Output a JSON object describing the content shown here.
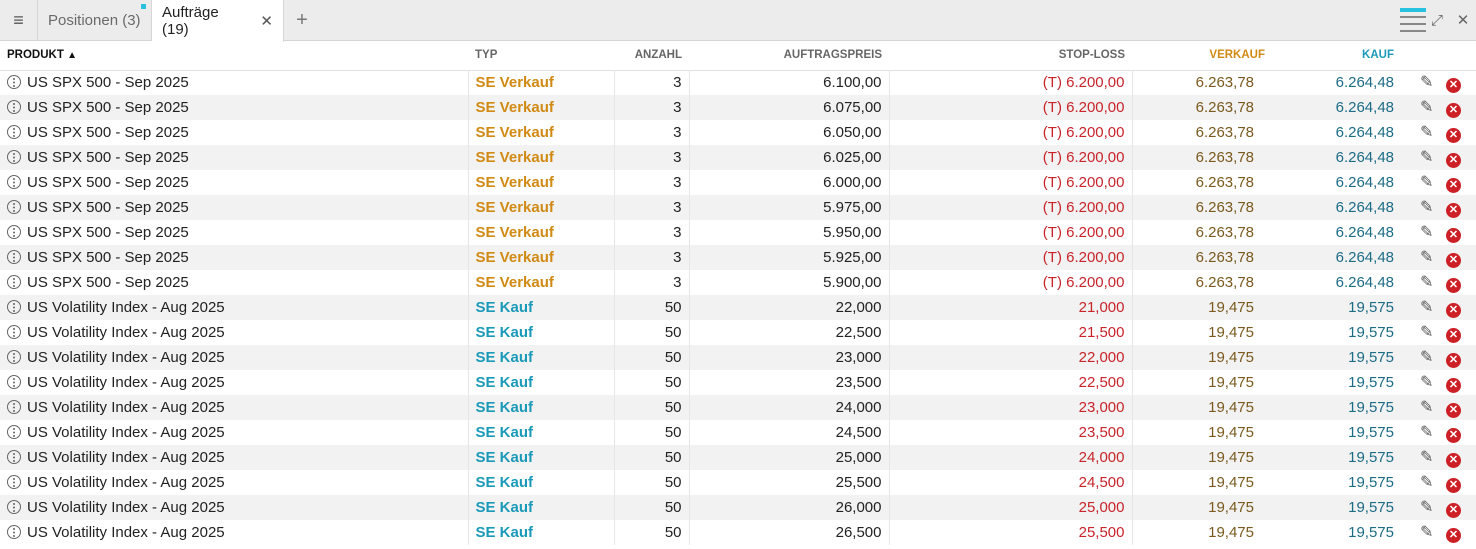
{
  "tabs": [
    {
      "label": "Positionen (3)",
      "active": false
    },
    {
      "label": "Aufträge (19)",
      "active": true
    }
  ],
  "icons": {
    "menu": "hamburger-icon",
    "close_tab": "close-icon",
    "add_tab": "plus-icon",
    "columns": "column-selector-icon",
    "expand": "expand-icon",
    "close_panel": "close-icon",
    "row_info": "more-vertical-icon",
    "edit": "pencil-icon",
    "cancel": "cancel-icon"
  },
  "glyphs": {
    "menu": "≡",
    "close": "✕",
    "add": "+",
    "expand": "⤢",
    "edit": "✎",
    "cancel": "✕"
  },
  "colors": {
    "sell": "#d18a14",
    "buy": "#1a9ab8",
    "stop": "#c8242a",
    "accent": "#27c2e0"
  },
  "columns": {
    "produkt": "PRODUKT",
    "sort_indicator": "▲",
    "typ": "TYP",
    "anzahl": "ANZAHL",
    "auftragspreis": "AUFTRAGSPREIS",
    "stop_loss": "STOP-LOSS",
    "verkauf": "VERKAUF",
    "kauf": "KAUF"
  },
  "orders": [
    {
      "product": "US SPX 500 - Sep 2025",
      "type": "SE Verkauf",
      "qty": "3",
      "price": "6.100,00",
      "stop": "(T) 6.200,00",
      "sell": "6.263,78",
      "buy": "6.264,48"
    },
    {
      "product": "US SPX 500 - Sep 2025",
      "type": "SE Verkauf",
      "qty": "3",
      "price": "6.075,00",
      "stop": "(T) 6.200,00",
      "sell": "6.263,78",
      "buy": "6.264,48"
    },
    {
      "product": "US SPX 500 - Sep 2025",
      "type": "SE Verkauf",
      "qty": "3",
      "price": "6.050,00",
      "stop": "(T) 6.200,00",
      "sell": "6.263,78",
      "buy": "6.264,48"
    },
    {
      "product": "US SPX 500 - Sep 2025",
      "type": "SE Verkauf",
      "qty": "3",
      "price": "6.025,00",
      "stop": "(T) 6.200,00",
      "sell": "6.263,78",
      "buy": "6.264,48"
    },
    {
      "product": "US SPX 500 - Sep 2025",
      "type": "SE Verkauf",
      "qty": "3",
      "price": "6.000,00",
      "stop": "(T) 6.200,00",
      "sell": "6.263,78",
      "buy": "6.264,48"
    },
    {
      "product": "US SPX 500 - Sep 2025",
      "type": "SE Verkauf",
      "qty": "3",
      "price": "5.975,00",
      "stop": "(T) 6.200,00",
      "sell": "6.263,78",
      "buy": "6.264,48"
    },
    {
      "product": "US SPX 500 - Sep 2025",
      "type": "SE Verkauf",
      "qty": "3",
      "price": "5.950,00",
      "stop": "(T) 6.200,00",
      "sell": "6.263,78",
      "buy": "6.264,48"
    },
    {
      "product": "US SPX 500 - Sep 2025",
      "type": "SE Verkauf",
      "qty": "3",
      "price": "5.925,00",
      "stop": "(T) 6.200,00",
      "sell": "6.263,78",
      "buy": "6.264,48"
    },
    {
      "product": "US SPX 500 - Sep 2025",
      "type": "SE Verkauf",
      "qty": "3",
      "price": "5.900,00",
      "stop": "(T) 6.200,00",
      "sell": "6.263,78",
      "buy": "6.264,48"
    },
    {
      "product": "US Volatility Index - Aug 2025",
      "type": "SE Kauf",
      "qty": "50",
      "price": "22,000",
      "stop": "21,000",
      "sell": "19,475",
      "buy": "19,575"
    },
    {
      "product": "US Volatility Index - Aug 2025",
      "type": "SE Kauf",
      "qty": "50",
      "price": "22,500",
      "stop": "21,500",
      "sell": "19,475",
      "buy": "19,575"
    },
    {
      "product": "US Volatility Index - Aug 2025",
      "type": "SE Kauf",
      "qty": "50",
      "price": "23,000",
      "stop": "22,000",
      "sell": "19,475",
      "buy": "19,575"
    },
    {
      "product": "US Volatility Index - Aug 2025",
      "type": "SE Kauf",
      "qty": "50",
      "price": "23,500",
      "stop": "22,500",
      "sell": "19,475",
      "buy": "19,575"
    },
    {
      "product": "US Volatility Index - Aug 2025",
      "type": "SE Kauf",
      "qty": "50",
      "price": "24,000",
      "stop": "23,000",
      "sell": "19,475",
      "buy": "19,575"
    },
    {
      "product": "US Volatility Index - Aug 2025",
      "type": "SE Kauf",
      "qty": "50",
      "price": "24,500",
      "stop": "23,500",
      "sell": "19,475",
      "buy": "19,575"
    },
    {
      "product": "US Volatility Index - Aug 2025",
      "type": "SE Kauf",
      "qty": "50",
      "price": "25,000",
      "stop": "24,000",
      "sell": "19,475",
      "buy": "19,575"
    },
    {
      "product": "US Volatility Index - Aug 2025",
      "type": "SE Kauf",
      "qty": "50",
      "price": "25,500",
      "stop": "24,500",
      "sell": "19,475",
      "buy": "19,575"
    },
    {
      "product": "US Volatility Index - Aug 2025",
      "type": "SE Kauf",
      "qty": "50",
      "price": "26,000",
      "stop": "25,000",
      "sell": "19,475",
      "buy": "19,575"
    },
    {
      "product": "US Volatility Index - Aug 2025",
      "type": "SE Kauf",
      "qty": "50",
      "price": "26,500",
      "stop": "25,500",
      "sell": "19,475",
      "buy": "19,575"
    }
  ]
}
